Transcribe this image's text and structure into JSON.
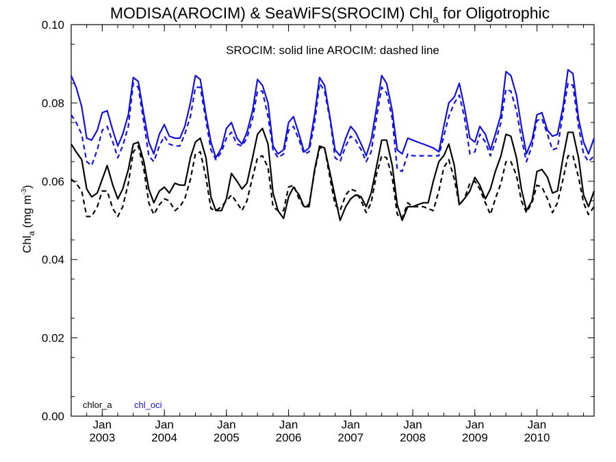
{
  "chart_data": {
    "type": "line",
    "title_main": "MODISA(AROCIM) & SeaWiFS(SROCIM)  Chl",
    "title_sub": "a",
    "title_end": " for Oligotrophic",
    "ylabel_main": "Chl",
    "ylabel_sub": "a",
    "ylabel_units": " (mg m",
    "ylabel_sup": "-3",
    "ylabel_close": ")",
    "ylim": [
      0.0,
      0.1
    ],
    "yticks": [
      "0.00",
      "0.02",
      "0.04",
      "0.06",
      "0.08",
      "0.10"
    ],
    "xlim": [
      2002.5,
      2010.92
    ],
    "xticks": [
      {
        "month": "Jan",
        "year": "2003"
      },
      {
        "month": "Jan",
        "year": "2004"
      },
      {
        "month": "Jan",
        "year": "2005"
      },
      {
        "month": "Jan",
        "year": "2006"
      },
      {
        "month": "Jan",
        "year": "2007"
      },
      {
        "month": "Jan",
        "year": "2008"
      },
      {
        "month": "Jan",
        "year": "2009"
      },
      {
        "month": "Jan",
        "year": "2010"
      }
    ],
    "annotation": "SROCIM: solid line   AROCIM: dashed line",
    "legend": [
      {
        "label": "chlor_a",
        "color": "#000000"
      },
      {
        "label": "chl_oci",
        "color": "#1010e0"
      }
    ],
    "colors": {
      "chlor_a": "#000000",
      "chl_oci": "#1010e0"
    },
    "x": [
      2002.5,
      2002.58,
      2002.67,
      2002.75,
      2002.83,
      2002.92,
      2003.0,
      2003.08,
      2003.17,
      2003.25,
      2003.33,
      2003.42,
      2003.5,
      2003.58,
      2003.67,
      2003.75,
      2003.83,
      2003.92,
      2004.0,
      2004.08,
      2004.17,
      2004.25,
      2004.33,
      2004.42,
      2004.5,
      2004.58,
      2004.67,
      2004.75,
      2004.83,
      2004.92,
      2005.0,
      2005.08,
      2005.17,
      2005.25,
      2005.33,
      2005.42,
      2005.5,
      2005.58,
      2005.67,
      2005.75,
      2005.83,
      2005.92,
      2006.0,
      2006.08,
      2006.17,
      2006.25,
      2006.33,
      2006.42,
      2006.5,
      2006.58,
      2006.67,
      2006.75,
      2006.83,
      2006.92,
      2007.0,
      2007.08,
      2007.17,
      2007.25,
      2007.33,
      2007.42,
      2007.5,
      2007.58,
      2007.67,
      2007.75,
      2007.83,
      2007.92,
      2008.0,
      2008.08,
      2008.17,
      2008.25,
      2008.33,
      2008.42,
      2008.5,
      2008.58,
      2008.67,
      2008.75,
      2008.83,
      2008.92,
      2009.0,
      2009.08,
      2009.17,
      2009.25,
      2009.33,
      2009.42,
      2009.5,
      2009.58,
      2009.67,
      2009.75,
      2009.83,
      2009.92,
      2010.0,
      2010.08,
      2010.17,
      2010.25,
      2010.33,
      2010.42,
      2010.5,
      2010.58,
      2010.67,
      2010.75,
      2010.83,
      2010.92
    ],
    "series": [
      {
        "name": "chl_oci",
        "style": "solid",
        "color": "#1010e0",
        "values": [
          0.087,
          0.084,
          0.079,
          0.071,
          0.0705,
          0.073,
          0.0775,
          0.078,
          0.073,
          0.069,
          0.072,
          0.077,
          0.0865,
          0.0855,
          0.077,
          0.07,
          0.067,
          0.072,
          0.0745,
          0.0715,
          0.071,
          0.071,
          0.074,
          0.08,
          0.087,
          0.086,
          0.077,
          0.07,
          0.066,
          0.0685,
          0.0735,
          0.075,
          0.071,
          0.0695,
          0.0725,
          0.078,
          0.086,
          0.0845,
          0.08,
          0.069,
          0.067,
          0.068,
          0.075,
          0.0765,
          0.072,
          0.0675,
          0.0685,
          0.077,
          0.0865,
          0.0845,
          0.076,
          0.068,
          0.0665,
          0.071,
          0.074,
          0.0725,
          0.0695,
          0.0665,
          0.0705,
          0.079,
          0.087,
          0.085,
          0.078,
          0.068,
          0.067,
          0.071,
          0.0705,
          0.07,
          0.0695,
          0.069,
          0.0685,
          0.0675,
          0.074,
          0.08,
          0.0815,
          0.085,
          0.079,
          0.071,
          0.07,
          0.074,
          0.072,
          0.068,
          0.072,
          0.077,
          0.088,
          0.087,
          0.082,
          0.074,
          0.067,
          0.0705,
          0.077,
          0.0775,
          0.073,
          0.0715,
          0.072,
          0.079,
          0.0885,
          0.0875,
          0.076,
          0.07,
          0.067,
          0.071
        ]
      },
      {
        "name": "chl_oci",
        "style": "dashed",
        "color": "#1010e0",
        "values": [
          0.077,
          0.075,
          0.072,
          0.065,
          0.064,
          0.068,
          0.073,
          0.074,
          0.07,
          0.066,
          0.069,
          0.074,
          0.085,
          0.084,
          0.075,
          0.0665,
          0.065,
          0.069,
          0.0715,
          0.0695,
          0.069,
          0.069,
          0.072,
          0.0765,
          0.084,
          0.084,
          0.0755,
          0.068,
          0.0655,
          0.0675,
          0.071,
          0.0725,
          0.0695,
          0.069,
          0.071,
          0.076,
          0.083,
          0.083,
          0.0765,
          0.068,
          0.066,
          0.067,
          0.073,
          0.074,
          0.0705,
          0.067,
          0.0675,
          0.075,
          0.085,
          0.083,
          0.0755,
          0.066,
          0.065,
          0.069,
          0.0715,
          0.0705,
          0.068,
          0.065,
          0.0675,
          0.0765,
          0.084,
          0.0825,
          0.076,
          0.063,
          0.0625,
          0.067,
          0.0665,
          0.0665,
          0.0665,
          0.0665,
          0.0665,
          0.0665,
          0.0715,
          0.0765,
          0.08,
          0.082,
          0.0765,
          0.067,
          0.0675,
          0.072,
          0.07,
          0.0665,
          0.07,
          0.075,
          0.0835,
          0.083,
          0.078,
          0.071,
          0.065,
          0.069,
          0.0755,
          0.076,
          0.072,
          0.068,
          0.0685,
          0.0775,
          0.085,
          0.0845,
          0.074,
          0.067,
          0.065,
          0.0665
        ]
      },
      {
        "name": "chlor_a",
        "style": "solid",
        "color": "#000000",
        "values": [
          0.0695,
          0.0675,
          0.0655,
          0.058,
          0.056,
          0.057,
          0.0605,
          0.064,
          0.059,
          0.0555,
          0.058,
          0.063,
          0.0695,
          0.07,
          0.065,
          0.058,
          0.0545,
          0.0575,
          0.0585,
          0.057,
          0.0595,
          0.059,
          0.059,
          0.066,
          0.07,
          0.071,
          0.066,
          0.056,
          0.0525,
          0.0525,
          0.0555,
          0.062,
          0.06,
          0.058,
          0.0595,
          0.066,
          0.072,
          0.0735,
          0.0695,
          0.057,
          0.0525,
          0.0505,
          0.056,
          0.0585,
          0.0565,
          0.0535,
          0.0535,
          0.063,
          0.069,
          0.0685,
          0.062,
          0.056,
          0.05,
          0.0535,
          0.0555,
          0.0565,
          0.056,
          0.0535,
          0.057,
          0.064,
          0.0705,
          0.0705,
          0.064,
          0.054,
          0.05,
          0.0535,
          0.0535,
          0.054,
          0.0545,
          0.0545,
          0.06,
          0.065,
          0.0665,
          0.0695,
          0.064,
          0.054,
          0.0555,
          0.0575,
          0.061,
          0.059,
          0.0555,
          0.058,
          0.0625,
          0.0665,
          0.072,
          0.0715,
          0.066,
          0.058,
          0.0525,
          0.055,
          0.0625,
          0.063,
          0.061,
          0.057,
          0.0575,
          0.066,
          0.0725,
          0.0725,
          0.066,
          0.0565,
          0.0535,
          0.0575
        ]
      },
      {
        "name": "chlor_a",
        "style": "dashed",
        "color": "#000000",
        "values": [
          0.0605,
          0.0595,
          0.0575,
          0.051,
          0.051,
          0.0535,
          0.0575,
          0.0575,
          0.053,
          0.051,
          0.0535,
          0.0595,
          0.0675,
          0.069,
          0.063,
          0.0545,
          0.0515,
          0.054,
          0.0555,
          0.055,
          0.0525,
          0.0535,
          0.0555,
          0.0605,
          0.067,
          0.0675,
          0.061,
          0.053,
          0.0525,
          0.0535,
          0.055,
          0.0565,
          0.0545,
          0.0525,
          0.055,
          0.061,
          0.066,
          0.0665,
          0.0635,
          0.0535,
          0.0525,
          0.0525,
          0.0585,
          0.059,
          0.0555,
          0.0535,
          0.054,
          0.0625,
          0.0685,
          0.0685,
          0.0605,
          0.054,
          0.0525,
          0.0565,
          0.058,
          0.0575,
          0.055,
          0.052,
          0.0545,
          0.062,
          0.0665,
          0.066,
          0.061,
          0.0515,
          0.0505,
          0.0545,
          0.0535,
          0.0535,
          0.0535,
          0.053,
          0.0525,
          0.0575,
          0.0635,
          0.0655,
          0.0605,
          0.054,
          0.0555,
          0.0595,
          0.06,
          0.058,
          0.0545,
          0.0515,
          0.0555,
          0.0595,
          0.065,
          0.065,
          0.0615,
          0.055,
          0.052,
          0.0545,
          0.059,
          0.0585,
          0.0555,
          0.052,
          0.0545,
          0.0605,
          0.0665,
          0.0665,
          0.061,
          0.0545,
          0.0515,
          0.0535
        ]
      }
    ]
  }
}
